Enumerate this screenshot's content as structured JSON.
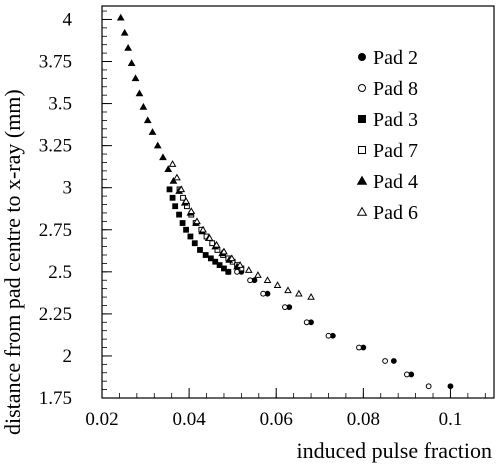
{
  "chart_data": {
    "type": "scatter",
    "title": "",
    "xlabel": "induced pulse fraction",
    "ylabel": "distance from pad centre to x-ray (mm)",
    "xlim": [
      0.02,
      0.11
    ],
    "ylim": [
      1.75,
      4.08
    ],
    "x_ticks": [
      {
        "value": 0.02,
        "label": "0.02"
      },
      {
        "value": 0.04,
        "label": "0.04"
      },
      {
        "value": 0.06,
        "label": "0.06"
      },
      {
        "value": 0.08,
        "label": "0.08"
      },
      {
        "value": 0.1,
        "label": "0.1"
      }
    ],
    "y_ticks": [
      {
        "value": 1.75,
        "label": "1.75"
      },
      {
        "value": 2.0,
        "label": "2"
      },
      {
        "value": 2.25,
        "label": "2.25"
      },
      {
        "value": 2.5,
        "label": "2.5"
      },
      {
        "value": 2.75,
        "label": "2.75"
      },
      {
        "value": 3.0,
        "label": "3"
      },
      {
        "value": 3.25,
        "label": "3.25"
      },
      {
        "value": 3.5,
        "label": "3.5"
      },
      {
        "value": 3.75,
        "label": "3.75"
      },
      {
        "value": 4.0,
        "label": "4"
      }
    ],
    "grid": false,
    "legend_position": "top-right",
    "series": [
      {
        "name": "Pad 2",
        "marker": "filled-circle",
        "x": [
          0.049,
          0.052,
          0.055,
          0.058,
          0.063,
          0.068,
          0.073,
          0.08,
          0.087,
          0.091,
          0.1
        ],
        "y": [
          2.5,
          2.5,
          2.45,
          2.37,
          2.29,
          2.2,
          2.12,
          2.05,
          1.97,
          1.89,
          1.82
        ]
      },
      {
        "name": "Pad 8",
        "marker": "open-circle",
        "x": [
          0.049,
          0.051,
          0.054,
          0.057,
          0.062,
          0.067,
          0.072,
          0.079,
          0.085,
          0.09,
          0.095
        ],
        "y": [
          2.5,
          2.5,
          2.45,
          2.37,
          2.29,
          2.2,
          2.12,
          2.05,
          1.97,
          1.89,
          1.82
        ]
      },
      {
        "name": "Pad 3",
        "marker": "filled-square",
        "x": [
          0.0355,
          0.0362,
          0.0368,
          0.0377,
          0.0385,
          0.0393,
          0.0403,
          0.0413,
          0.0425,
          0.0438,
          0.045,
          0.046,
          0.047,
          0.048,
          0.049
        ],
        "y": [
          2.99,
          2.94,
          2.89,
          2.84,
          2.79,
          2.75,
          2.71,
          2.67,
          2.63,
          2.6,
          2.58,
          2.56,
          2.54,
          2.52,
          2.5
        ]
      },
      {
        "name": "Pad 7",
        "marker": "open-square",
        "x": [
          0.0378,
          0.0386,
          0.0395,
          0.0405,
          0.0415,
          0.0428,
          0.044,
          0.0453,
          0.0465,
          0.0478,
          0.049,
          0.05,
          0.051,
          0.052
        ],
        "y": [
          2.99,
          2.94,
          2.89,
          2.84,
          2.79,
          2.75,
          2.71,
          2.67,
          2.63,
          2.6,
          2.58,
          2.56,
          2.54,
          2.52
        ]
      },
      {
        "name": "Pad 4",
        "marker": "filled-triangle",
        "x": [
          0.0243,
          0.0252,
          0.026,
          0.0268,
          0.0277,
          0.0286,
          0.0295,
          0.0305,
          0.0316,
          0.0328,
          0.034,
          0.0352,
          0.0364,
          0.0377,
          0.039,
          0.0403,
          0.0416,
          0.043,
          0.0445,
          0.046,
          0.0476,
          0.0492,
          0.051
        ],
        "y": [
          4.01,
          3.92,
          3.83,
          3.74,
          3.65,
          3.56,
          3.48,
          3.4,
          3.33,
          3.25,
          3.18,
          3.11,
          3.04,
          2.98,
          2.91,
          2.85,
          2.79,
          2.74,
          2.7,
          2.65,
          2.61,
          2.57,
          2.53
        ]
      },
      {
        "name": "Pad 6",
        "marker": "open-triangle",
        "x": [
          0.0362,
          0.0372,
          0.0382,
          0.0393,
          0.0405,
          0.0418,
          0.0432,
          0.0447,
          0.0463,
          0.048,
          0.0498,
          0.0517,
          0.0537,
          0.0558,
          0.058,
          0.0603,
          0.0627,
          0.0652,
          0.068
        ],
        "y": [
          3.14,
          3.06,
          2.99,
          2.92,
          2.86,
          2.8,
          2.75,
          2.7,
          2.66,
          2.62,
          2.58,
          2.54,
          2.51,
          2.48,
          2.45,
          2.42,
          2.39,
          2.37,
          2.35
        ]
      }
    ]
  }
}
